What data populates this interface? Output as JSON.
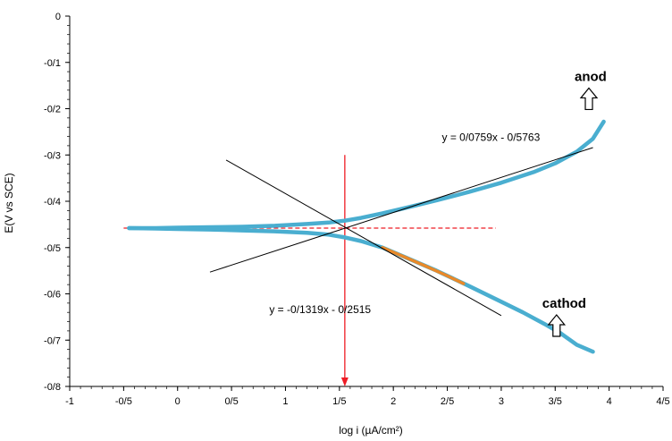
{
  "chart_data": {
    "type": "line",
    "title": "",
    "xlabel": "log i (µA/cm²)",
    "ylabel": "E(V vs SCE)",
    "xlim": [
      -1,
      4.5
    ],
    "ylim": [
      -0.8,
      0
    ],
    "x_ticks": [
      {
        "value": -1,
        "label": "-1"
      },
      {
        "value": -0.5,
        "label": "-0/5"
      },
      {
        "value": 0,
        "label": "0"
      },
      {
        "value": 0.5,
        "label": "0/5"
      },
      {
        "value": 1,
        "label": "1"
      },
      {
        "value": 1.5,
        "label": "1/5"
      },
      {
        "value": 2,
        "label": "2"
      },
      {
        "value": 2.5,
        "label": "2/5"
      },
      {
        "value": 3,
        "label": "3"
      },
      {
        "value": 3.5,
        "label": "3/5"
      },
      {
        "value": 4,
        "label": "4"
      },
      {
        "value": 4.5,
        "label": "4/5"
      }
    ],
    "y_ticks": [
      {
        "value": 0,
        "label": "0"
      },
      {
        "value": -0.1,
        "label": "-0/1"
      },
      {
        "value": -0.2,
        "label": "-0/2"
      },
      {
        "value": -0.3,
        "label": "-0/3"
      },
      {
        "value": -0.4,
        "label": "-0/4"
      },
      {
        "value": -0.5,
        "label": "-0/5"
      },
      {
        "value": -0.6,
        "label": "-0/6"
      },
      {
        "value": -0.7,
        "label": "-0/7"
      },
      {
        "value": -0.8,
        "label": "-0/8"
      }
    ],
    "grid": false,
    "series": [
      {
        "color": "#4aaed0",
        "x": [
          -0.45,
          -0.2,
          0,
          0.3,
          0.6,
          0.9,
          1.2,
          1.4,
          1.55,
          1.7,
          1.9,
          2.1,
          2.4,
          2.7,
          3.0,
          3.3,
          3.5,
          3.7,
          3.85,
          3.95
        ],
        "y": [
          -0.458,
          -0.458,
          -0.457,
          -0.456,
          -0.455,
          -0.453,
          -0.449,
          -0.446,
          -0.442,
          -0.436,
          -0.426,
          -0.415,
          -0.398,
          -0.38,
          -0.36,
          -0.337,
          -0.318,
          -0.293,
          -0.265,
          -0.228
        ]
      },
      {
        "color": "#4aaed0",
        "x": [
          -0.45,
          -0.2,
          0,
          0.3,
          0.6,
          0.9,
          1.2,
          1.4,
          1.55,
          1.7,
          1.9,
          2.1,
          2.4,
          2.7,
          3.0,
          3.2,
          3.4,
          3.55,
          3.7,
          3.85
        ],
        "y": [
          -0.458,
          -0.459,
          -0.46,
          -0.461,
          -0.463,
          -0.465,
          -0.468,
          -0.472,
          -0.478,
          -0.486,
          -0.5,
          -0.52,
          -0.55,
          -0.583,
          -0.617,
          -0.64,
          -0.665,
          -0.685,
          -0.71,
          -0.725
        ]
      },
      {
        "color": "#e8892a",
        "x": [
          1.9,
          2.1,
          2.3,
          2.5,
          2.65
        ],
        "y": [
          -0.5,
          -0.52,
          -0.54,
          -0.561,
          -0.578
        ]
      }
    ],
    "tafel_lines": [
      {
        "color": "#000000",
        "x": [
          0.3,
          3.85
        ],
        "y": [
          -0.553,
          -0.284
        ]
      },
      {
        "color": "#000000",
        "x": [
          0.45,
          3.0
        ],
        "y": [
          -0.311,
          -0.647
        ]
      }
    ],
    "reference_lines": [
      {
        "orientation": "horizontal",
        "value": -0.458,
        "from": -0.5,
        "to": 2.95,
        "color": "#ee1c25",
        "style": "dashed"
      },
      {
        "orientation": "vertical",
        "value": 1.55,
        "from": -0.3,
        "to": -0.8,
        "color": "#ee1c25",
        "style": "arrow"
      }
    ],
    "annotations": [
      {
        "text": "y = 0/0759x - 0/5763",
        "x": 2.45,
        "y": -0.27
      },
      {
        "text": "y = -0/1319x - 0/2515",
        "x": 0.85,
        "y": -0.642
      },
      {
        "text": "anod",
        "x": 3.68,
        "y": -0.14,
        "arrow": "up"
      },
      {
        "text": "cathod",
        "x": 3.38,
        "y": -0.63,
        "arrow": "up"
      }
    ]
  }
}
